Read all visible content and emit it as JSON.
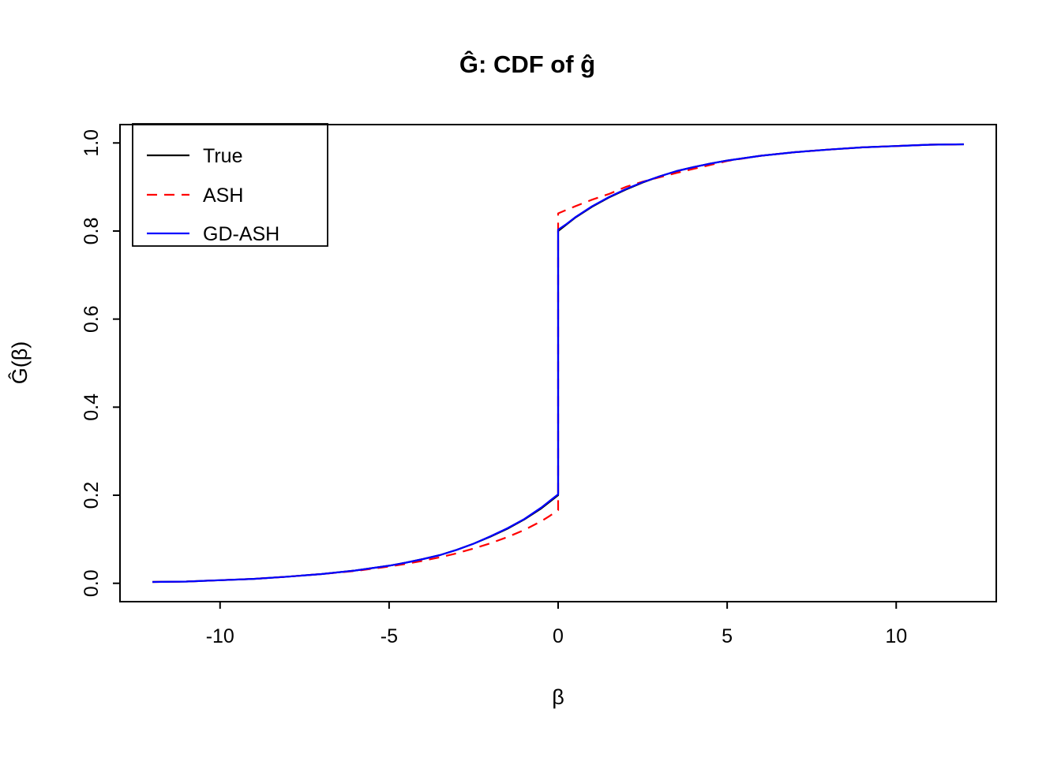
{
  "chart_data": {
    "type": "line",
    "title": "Ĝ: CDF of ĝ",
    "xlabel": "β",
    "ylabel": "Ĝ(β)",
    "xlim": [
      -12.96,
      12.96
    ],
    "ylim": [
      -0.0417,
      1.0417
    ],
    "xticks": [
      -10,
      -5,
      0,
      5,
      10
    ],
    "xtick_labels": [
      "-10",
      "-5",
      "0",
      "5",
      "10"
    ],
    "yticks": [
      0.0,
      0.2,
      0.4,
      0.6,
      0.8,
      1.0
    ],
    "ytick_labels": [
      "0.0",
      "0.2",
      "0.4",
      "0.6",
      "0.8",
      "1.0"
    ],
    "grid": false,
    "legend_position": "top-left",
    "series": [
      {
        "name": "True",
        "color": "#000000",
        "style": "solid",
        "points": [
          [
            -12,
            0.003
          ],
          [
            -11,
            0.004
          ],
          [
            -10,
            0.007
          ],
          [
            -9,
            0.01
          ],
          [
            -8,
            0.015
          ],
          [
            -7,
            0.021
          ],
          [
            -6,
            0.029
          ],
          [
            -5,
            0.04
          ],
          [
            -4.5,
            0.047
          ],
          [
            -4,
            0.055
          ],
          [
            -3.5,
            0.064
          ],
          [
            -3,
            0.076
          ],
          [
            -2.5,
            0.09
          ],
          [
            -2,
            0.106
          ],
          [
            -1.5,
            0.124
          ],
          [
            -1,
            0.145
          ],
          [
            -0.5,
            0.17
          ],
          [
            -0.25,
            0.185
          ],
          [
            0,
            0.2
          ],
          [
            0,
            0.8
          ],
          [
            0.25,
            0.815
          ],
          [
            0.5,
            0.83
          ],
          [
            1,
            0.855
          ],
          [
            1.5,
            0.876
          ],
          [
            2,
            0.894
          ],
          [
            2.5,
            0.91
          ],
          [
            3,
            0.924
          ],
          [
            3.5,
            0.936
          ],
          [
            4,
            0.945
          ],
          [
            4.5,
            0.953
          ],
          [
            5,
            0.96
          ],
          [
            6,
            0.971
          ],
          [
            7,
            0.979
          ],
          [
            8,
            0.985
          ],
          [
            9,
            0.99
          ],
          [
            10,
            0.993
          ],
          [
            11,
            0.996
          ],
          [
            12,
            0.997
          ]
        ]
      },
      {
        "name": "ASH",
        "color": "#ff0000",
        "style": "dashed",
        "points": [
          [
            -12,
            0.003
          ],
          [
            -11,
            0.004
          ],
          [
            -10,
            0.007
          ],
          [
            -9,
            0.01
          ],
          [
            -8,
            0.015
          ],
          [
            -7,
            0.021
          ],
          [
            -6,
            0.028
          ],
          [
            -5,
            0.038
          ],
          [
            -4.5,
            0.044
          ],
          [
            -4,
            0.051
          ],
          [
            -3.5,
            0.059
          ],
          [
            -3,
            0.068
          ],
          [
            -2.5,
            0.079
          ],
          [
            -2,
            0.091
          ],
          [
            -1.5,
            0.105
          ],
          [
            -1,
            0.121
          ],
          [
            -0.5,
            0.141
          ],
          [
            -0.25,
            0.153
          ],
          [
            0,
            0.166
          ],
          [
            0,
            0.84
          ],
          [
            0.5,
            0.856
          ],
          [
            1,
            0.871
          ],
          [
            1.5,
            0.884
          ],
          [
            2,
            0.9
          ],
          [
            2.5,
            0.912
          ],
          [
            3,
            0.922
          ],
          [
            3.5,
            0.932
          ],
          [
            4,
            0.941
          ],
          [
            4.5,
            0.95
          ],
          [
            5,
            0.959
          ],
          [
            6,
            0.971
          ],
          [
            7,
            0.979
          ],
          [
            8,
            0.985
          ],
          [
            9,
            0.99
          ],
          [
            10,
            0.993
          ],
          [
            11,
            0.996
          ],
          [
            12,
            0.997
          ]
        ]
      },
      {
        "name": "GD-ASH",
        "color": "#0000ff",
        "style": "solid",
        "points": [
          [
            -12,
            0.003
          ],
          [
            -11,
            0.004
          ],
          [
            -10,
            0.007
          ],
          [
            -9,
            0.01
          ],
          [
            -8,
            0.015
          ],
          [
            -7,
            0.021
          ],
          [
            -6,
            0.029
          ],
          [
            -5,
            0.04
          ],
          [
            -4.5,
            0.047
          ],
          [
            -4,
            0.055
          ],
          [
            -3.5,
            0.064
          ],
          [
            -3,
            0.076
          ],
          [
            -2.5,
            0.09
          ],
          [
            -2,
            0.107
          ],
          [
            -1.5,
            0.125
          ],
          [
            -1,
            0.146
          ],
          [
            -0.5,
            0.172
          ],
          [
            -0.25,
            0.187
          ],
          [
            0,
            0.202
          ],
          [
            0,
            0.803
          ],
          [
            0.25,
            0.816
          ],
          [
            0.5,
            0.831
          ],
          [
            1,
            0.856
          ],
          [
            1.5,
            0.877
          ],
          [
            2,
            0.895
          ],
          [
            2.5,
            0.911
          ],
          [
            3,
            0.924
          ],
          [
            3.5,
            0.936
          ],
          [
            4,
            0.945
          ],
          [
            4.5,
            0.953
          ],
          [
            5,
            0.96
          ],
          [
            6,
            0.971
          ],
          [
            7,
            0.979
          ],
          [
            8,
            0.985
          ],
          [
            9,
            0.99
          ],
          [
            10,
            0.993
          ],
          [
            11,
            0.996
          ],
          [
            12,
            0.997
          ]
        ]
      }
    ]
  }
}
